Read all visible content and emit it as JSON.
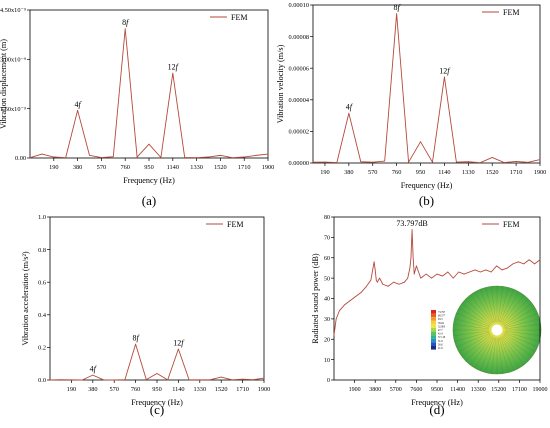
{
  "style": {
    "line_color": "#b5493a",
    "axis_color": "#000000"
  },
  "chart_data": [
    {
      "panel_label": "(a)",
      "type": "line",
      "xlabel": "Frequency (Hz)",
      "ylabel": "Vibration displacement (m)",
      "legend": {
        "label": "FEM",
        "position": "top-right"
      },
      "xlim": [
        0,
        1900
      ],
      "xticks": [
        190,
        380,
        570,
        760,
        950,
        1140,
        1330,
        1520,
        1710,
        1900
      ],
      "ylim": [
        0,
        4.5e-09
      ],
      "yticks": [
        {
          "value": 0,
          "label": "0.00"
        },
        {
          "value": 1.5e-09,
          "label": "1.50x10⁻⁹"
        },
        {
          "value": 3e-09,
          "label": "3.00x10⁻⁹"
        },
        {
          "value": 4.5e-09,
          "label": "4.50x10⁻⁹"
        }
      ],
      "x": [
        0,
        95,
        190,
        285,
        380,
        475,
        570,
        665,
        760,
        855,
        950,
        1045,
        1140,
        1235,
        1330,
        1425,
        1520,
        1615,
        1710,
        1805,
        1900
      ],
      "y": [
        1e-11,
        1.2e-10,
        3e-11,
        1e-11,
        1.45e-09,
        8e-11,
        1.2e-11,
        4e-11,
        3.93e-09,
        3e-11,
        4.2e-10,
        1.5e-11,
        2.58e-09,
        1.5e-11,
        1e-11,
        3e-11,
        8e-11,
        1e-11,
        3e-11,
        8e-11,
        1.2e-10
      ],
      "annotations": [
        {
          "text": "4f",
          "x": 380,
          "y": 1.45e-09
        },
        {
          "text": "8f",
          "x": 760,
          "y": 3.93e-09
        },
        {
          "text": "12f",
          "x": 1140,
          "y": 2.58e-09
        }
      ]
    },
    {
      "panel_label": "(b)",
      "type": "line",
      "xlabel": "Frequency (Hz)",
      "ylabel": "Vibration velocity (m/s)",
      "legend": {
        "label": "FEM",
        "position": "top-right"
      },
      "xlim": [
        95,
        1900
      ],
      "xticks": [
        190,
        380,
        570,
        760,
        950,
        1140,
        1330,
        1520,
        1710,
        1900
      ],
      "ylim": [
        0,
        0.0001
      ],
      "yticks": [
        {
          "value": 0,
          "label": "0.00000"
        },
        {
          "value": 2e-05,
          "label": "0.00002"
        },
        {
          "value": 4e-05,
          "label": "0.00004"
        },
        {
          "value": 6e-05,
          "label": "0.00006"
        },
        {
          "value": 8e-05,
          "label": "0.00008"
        },
        {
          "value": 0.0001,
          "label": "0.00010"
        }
      ],
      "x": [
        95,
        190,
        285,
        380,
        475,
        570,
        665,
        760,
        855,
        950,
        1045,
        1140,
        1235,
        1330,
        1425,
        1520,
        1615,
        1710,
        1805,
        1900
      ],
      "y": [
        5e-07,
        6e-07,
        3e-07,
        3.15e-05,
        8e-07,
        5e-07,
        1.2e-06,
        9.45e-05,
        5e-07,
        1.35e-05,
        5e-07,
        5.45e-05,
        6e-07,
        8e-07,
        2e-07,
        3.5e-06,
        3e-07,
        1e-06,
        4e-07,
        2.2e-06
      ],
      "annotations": [
        {
          "text": "4f",
          "x": 380,
          "y": 3.15e-05
        },
        {
          "text": "8f",
          "x": 760,
          "y": 9.45e-05
        },
        {
          "text": "12f",
          "x": 1140,
          "y": 5.45e-05
        }
      ]
    },
    {
      "panel_label": "(c)",
      "type": "line",
      "xlabel": "Frequency (Hz)",
      "ylabel": "Vibration acceleration (m/s²)",
      "legend": {
        "label": "FEM",
        "position": "top-right"
      },
      "xlim": [
        0,
        1900
      ],
      "xticks": [
        190,
        380,
        570,
        760,
        950,
        1140,
        1330,
        1520,
        1710,
        1900
      ],
      "ylim": [
        0,
        1.0
      ],
      "yticks": [
        {
          "value": 0,
          "label": "0.0"
        },
        {
          "value": 0.2,
          "label": "0.2"
        },
        {
          "value": 0.4,
          "label": "0.4"
        },
        {
          "value": 0.6,
          "label": "0.6"
        },
        {
          "value": 0.8,
          "label": "0.8"
        },
        {
          "value": 1.0,
          "label": "1.0"
        }
      ],
      "x": [
        0,
        95,
        190,
        285,
        380,
        475,
        570,
        665,
        760,
        855,
        950,
        1045,
        1140,
        1235,
        1330,
        1425,
        1520,
        1615,
        1710,
        1805,
        1900
      ],
      "y": [
        0.0,
        0.002,
        0.001,
        0.0,
        0.03,
        0.001,
        0.0,
        0.002,
        0.22,
        0.002,
        0.04,
        0.001,
        0.19,
        0.001,
        0.001,
        0.002,
        0.018,
        0.001,
        0.005,
        0.002,
        0.012
      ],
      "annotations": [
        {
          "text": "4f",
          "x": 380,
          "y": 0.03
        },
        {
          "text": "8f",
          "x": 760,
          "y": 0.22
        },
        {
          "text": "12f",
          "x": 1140,
          "y": 0.19
        }
      ]
    },
    {
      "panel_label": "(d)",
      "type": "line",
      "xlabel": "Frequency (Hz)",
      "ylabel": "Radiated sound power (dB)",
      "legend": {
        "label": "FEM",
        "position": "top-right"
      },
      "xlim": [
        0,
        19000
      ],
      "xticks": [
        1900,
        3800,
        5700,
        7600,
        9500,
        11400,
        13300,
        15200,
        17100,
        19000
      ],
      "ylim": [
        0,
        80
      ],
      "yticks": [
        {
          "value": 0,
          "label": "0"
        },
        {
          "value": 10,
          "label": "10"
        },
        {
          "value": 20,
          "label": "20"
        },
        {
          "value": 30,
          "label": "30"
        },
        {
          "value": 40,
          "label": "40"
        },
        {
          "value": 50,
          "label": "50"
        },
        {
          "value": 60,
          "label": "60"
        },
        {
          "value": 70,
          "label": "70"
        },
        {
          "value": 80,
          "label": "80"
        }
      ],
      "x": [
        0,
        200,
        500,
        1000,
        1500,
        2000,
        2500,
        3000,
        3400,
        3600,
        3700,
        3800,
        3900,
        4000,
        4200,
        4500,
        5000,
        5500,
        6000,
        6500,
        6800,
        7000,
        7100,
        7200,
        7300,
        7400,
        7600,
        8000,
        8500,
        9000,
        9500,
        10000,
        10500,
        11000,
        11500,
        12000,
        12500,
        13000,
        13500,
        14000,
        14500,
        15000,
        15500,
        16000,
        16500,
        17000,
        17500,
        18000,
        18500,
        19000
      ],
      "y": [
        22,
        30,
        34,
        37,
        39,
        41,
        43,
        46,
        49,
        55,
        58,
        54,
        49,
        48,
        50,
        47,
        46,
        48,
        47,
        48,
        50,
        55,
        60,
        73.797,
        60,
        52,
        56,
        50,
        52,
        50,
        52,
        51,
        53,
        50,
        53,
        52,
        53,
        54,
        53,
        54,
        53,
        56,
        54,
        55,
        57,
        58,
        57,
        59,
        57,
        59
      ],
      "annotations": [
        {
          "text": "73.797dB",
          "x": 7200,
          "y": 73.797
        }
      ],
      "inset": {
        "legend_values": [
          "73.797",
          "68.577",
          "63.3",
          "58.04",
          "52.803",
          "47.7",
          "42.4",
          "37.118",
          "31.9",
          "26.6",
          "21.8"
        ]
      }
    }
  ]
}
